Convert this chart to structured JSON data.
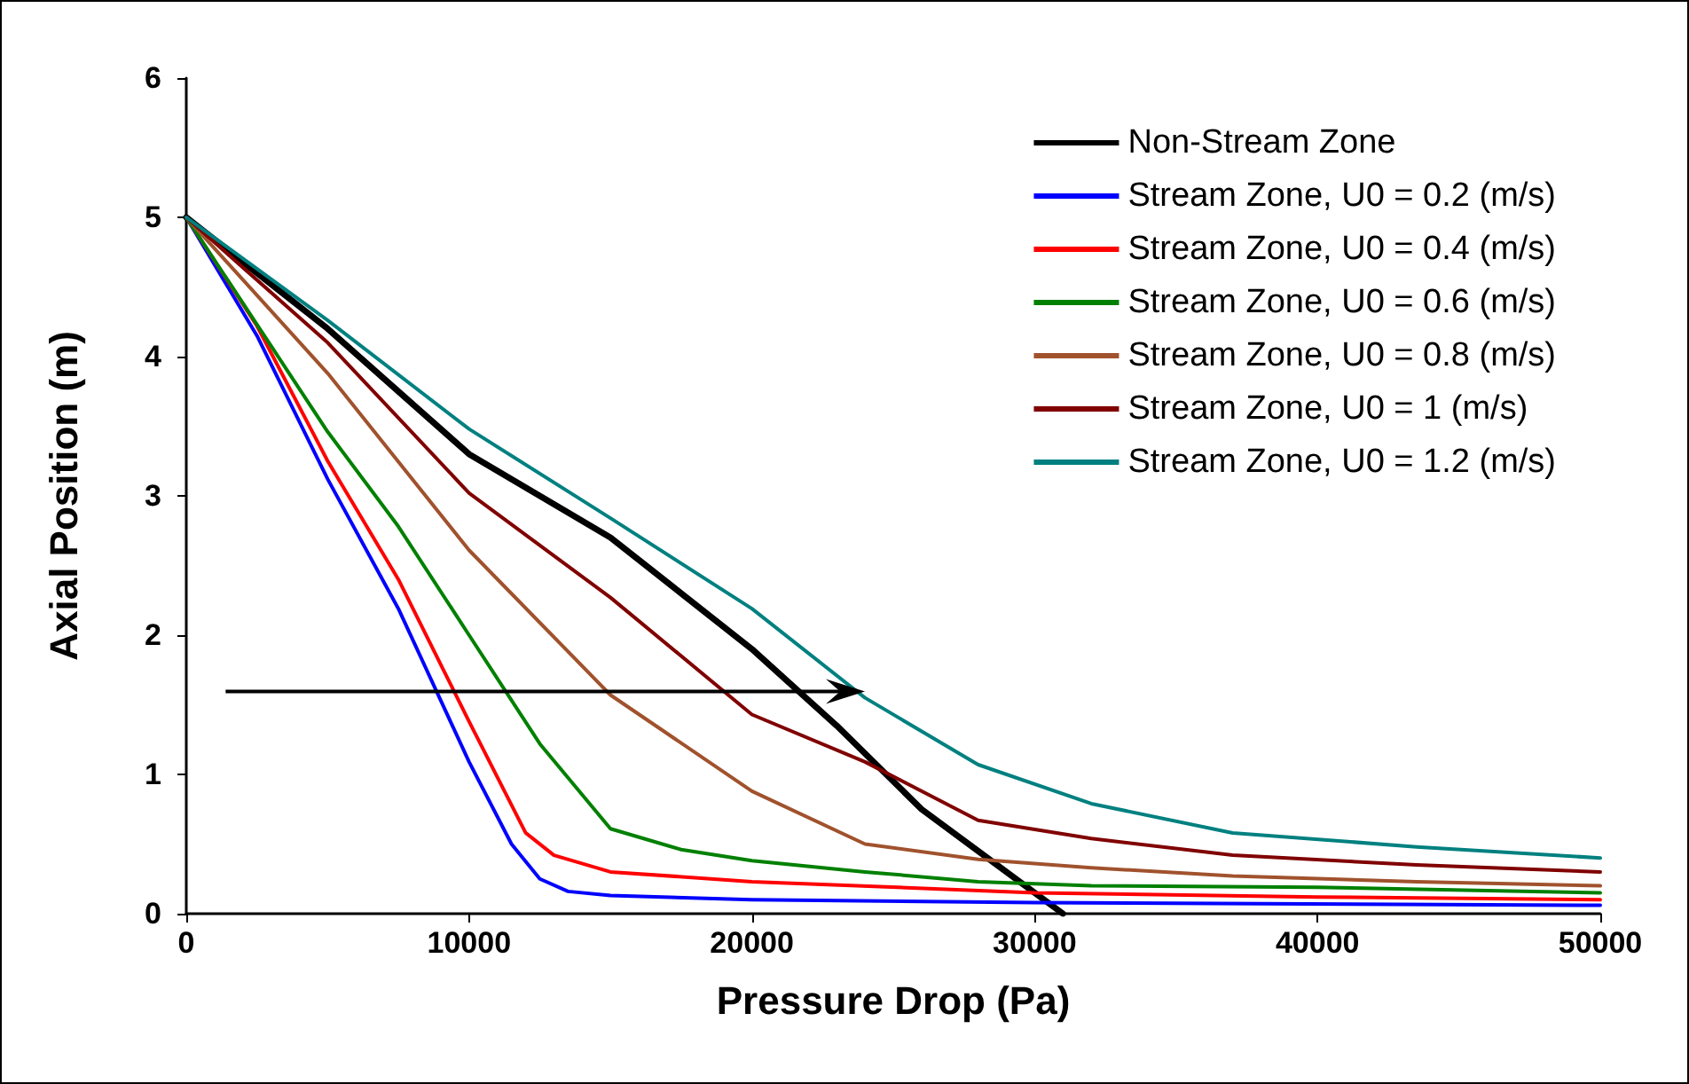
{
  "chart_data": {
    "type": "line",
    "xlabel": "Pressure Drop (Pa)",
    "ylabel": "Axial Position (m)",
    "xlim": [
      0,
      50000
    ],
    "xticks": [
      0,
      10000,
      20000,
      30000,
      40000,
      50000
    ],
    "ylim": [
      0,
      6
    ],
    "yticks": [
      0,
      1,
      2,
      3,
      4,
      5,
      6
    ],
    "grid": false,
    "legend": "top right",
    "marker": "none",
    "line_style": "solid",
    "series": [
      {
        "name": "Non-Stream Zone",
        "color": "#000000",
        "x": [
          0,
          5000,
          10000,
          15000,
          20000,
          23000,
          26000,
          28000,
          31000
        ],
        "values": [
          5,
          4.2,
          3.3,
          2.7,
          1.9,
          1.35,
          0.75,
          0.45,
          0
        ]
      },
      {
        "name": "Stream Zone, U0 = 0.2 (m/s)",
        "color": "#0000ff",
        "x": [
          0,
          2500,
          5000,
          7500,
          10000,
          11500,
          12500,
          13500,
          15000,
          20000,
          30000,
          50000
        ],
        "values": [
          5,
          4.15,
          3.12,
          2.19,
          1.09,
          0.5,
          0.25,
          0.16,
          0.13,
          0.1,
          0.08,
          0.06
        ]
      },
      {
        "name": "Stream Zone, U0 = 0.4 (m/s)",
        "color": "#ff0000",
        "x": [
          0,
          2500,
          5000,
          7500,
          10000,
          12000,
          13000,
          15000,
          20000,
          30000,
          40000,
          50000
        ],
        "values": [
          5,
          4.22,
          3.25,
          2.4,
          1.38,
          0.58,
          0.42,
          0.3,
          0.23,
          0.15,
          0.12,
          0.1
        ]
      },
      {
        "name": "Stream Zone, U0 = 0.6 (m/s)",
        "color": "#008000",
        "x": [
          0,
          5000,
          7500,
          10000,
          12500,
          15000,
          17500,
          20000,
          24000,
          28000,
          32000,
          40000,
          50000
        ],
        "values": [
          5,
          3.46,
          2.78,
          2.0,
          1.22,
          0.61,
          0.46,
          0.38,
          0.3,
          0.23,
          0.2,
          0.19,
          0.15
        ]
      },
      {
        "name": "Stream Zone, U0 = 0.8 (m/s)",
        "color": "#a0522d",
        "x": [
          0,
          5000,
          10000,
          15000,
          20000,
          24000,
          28000,
          32000,
          37000,
          43500,
          50000
        ],
        "values": [
          5,
          3.88,
          2.61,
          1.57,
          0.88,
          0.5,
          0.39,
          0.33,
          0.27,
          0.23,
          0.2
        ]
      },
      {
        "name": "Stream Zone, U0 = 1 (m/s)",
        "color": "#800000",
        "x": [
          0,
          5000,
          10000,
          15000,
          20000,
          24000,
          28000,
          32000,
          37000,
          43500,
          50000
        ],
        "values": [
          5,
          4.1,
          3.02,
          2.27,
          1.43,
          1.09,
          0.67,
          0.54,
          0.42,
          0.35,
          0.3
        ]
      },
      {
        "name": "Stream Zone, U0 = 1.2 (m/s)",
        "color": "#008080",
        "x": [
          0,
          5000,
          10000,
          15000,
          20000,
          24000,
          28000,
          32000,
          37000,
          43500,
          50000
        ],
        "values": [
          5,
          4.26,
          3.48,
          2.84,
          2.19,
          1.55,
          1.07,
          0.79,
          0.58,
          0.48,
          0.4
        ]
      }
    ]
  }
}
